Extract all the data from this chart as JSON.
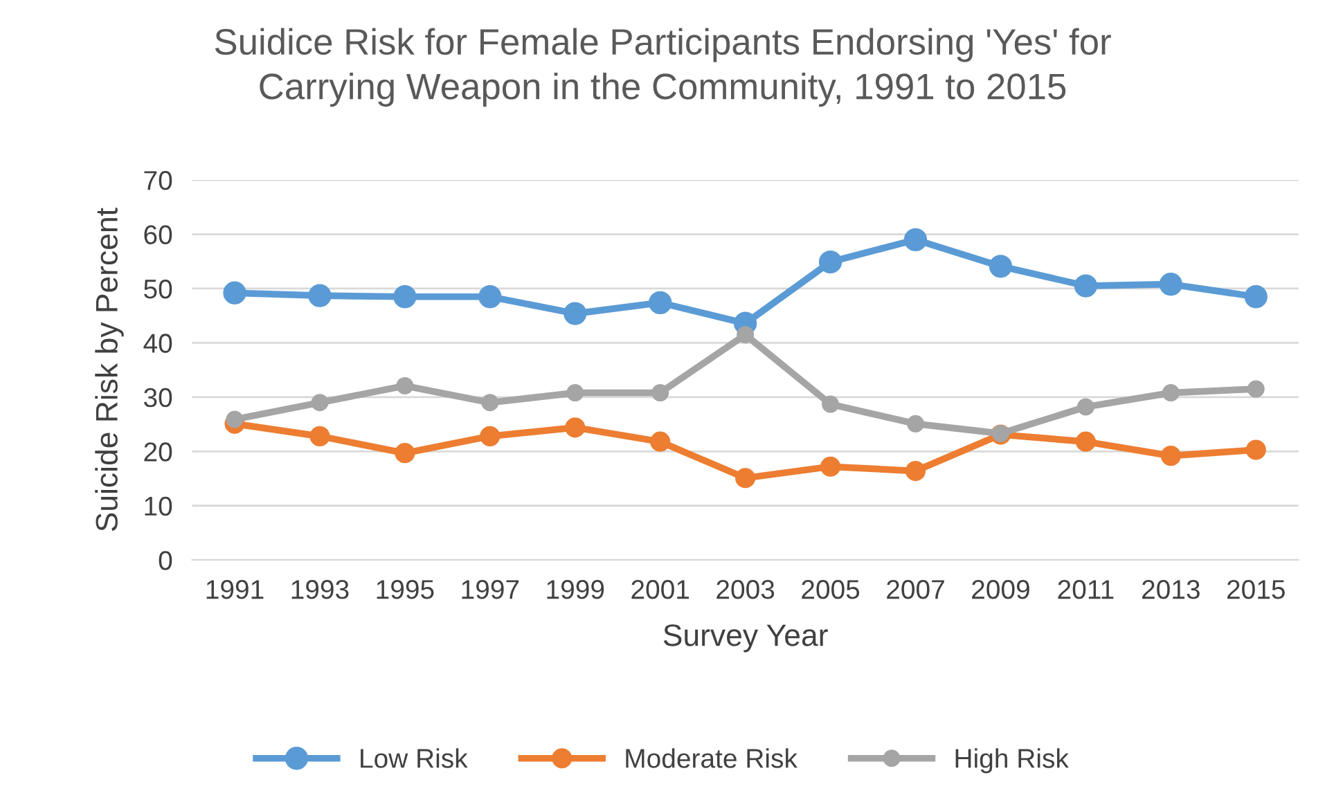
{
  "chart_data": {
    "type": "line",
    "title": "Suidice Risk for Female Participants Endorsing 'Yes' for\nCarrying Weapon in the Community, 1991 to 2015",
    "xlabel": "Survey Year",
    "ylabel": "Suicide Risk by Percent",
    "categories": [
      "1991",
      "1993",
      "1995",
      "1997",
      "1999",
      "2001",
      "2003",
      "2005",
      "2007",
      "2009",
      "2011",
      "2013",
      "2015"
    ],
    "series": [
      {
        "name": "Low Risk",
        "color": "#5b9bd5",
        "values": [
          49.2,
          48.7,
          48.5,
          48.5,
          45.4,
          47.4,
          43.6,
          54.9,
          59.0,
          54.1,
          50.5,
          50.8,
          48.5
        ]
      },
      {
        "name": "Moderate Risk",
        "color": "#ed7d31",
        "values": [
          25.1,
          22.8,
          19.7,
          22.8,
          24.4,
          21.8,
          15.1,
          17.2,
          16.4,
          23.1,
          21.8,
          19.2,
          20.3
        ]
      },
      {
        "name": "High Risk",
        "color": "#a5a5a5",
        "values": [
          25.9,
          29.0,
          32.1,
          29.0,
          30.8,
          30.8,
          41.5,
          28.7,
          25.1,
          23.3,
          28.2,
          30.8,
          31.5
        ]
      }
    ],
    "ylim": [
      0,
      70
    ],
    "yticks": [
      0,
      10,
      20,
      30,
      40,
      50,
      60,
      70
    ],
    "grid": "y",
    "legend": "bottom",
    "marker": "circle",
    "line_style": "solid"
  }
}
